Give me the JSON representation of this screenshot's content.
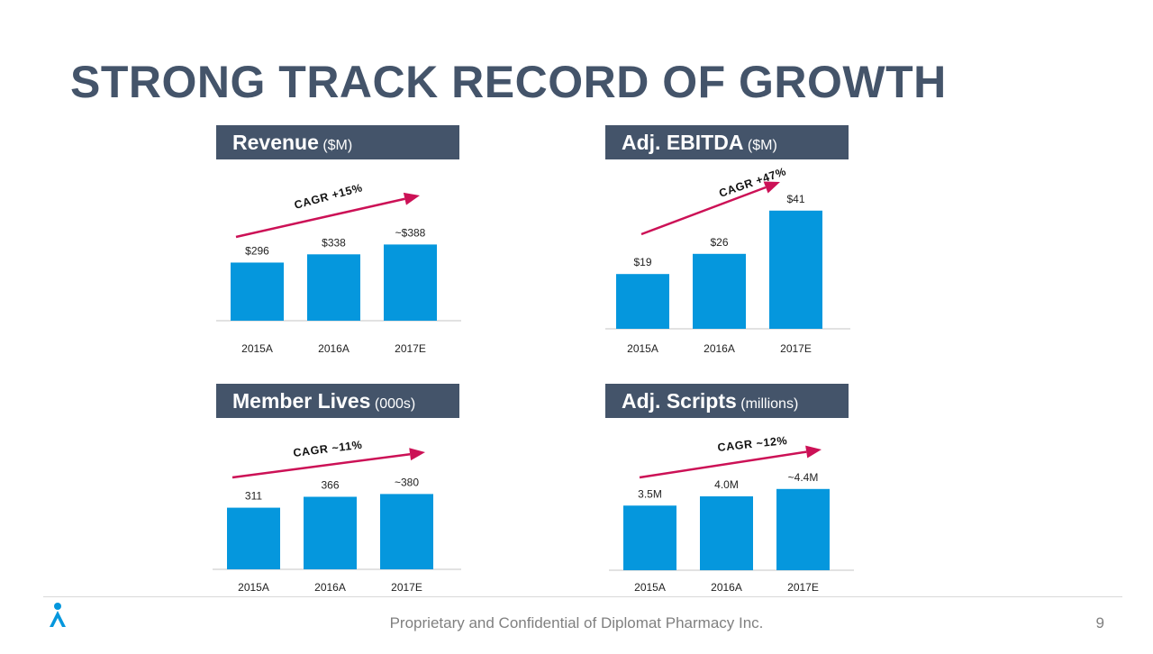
{
  "title": "STRONG TRACK RECORD OF GROWTH",
  "footer": "Proprietary and Confidential of Diplomat Pharmacy Inc.",
  "page_number": "9",
  "colors": {
    "bar": "#0597dd",
    "header": "#44546a",
    "arrow": "#cc1156",
    "title": "#44546a"
  },
  "chart_data": [
    {
      "type": "bar",
      "title": "Revenue",
      "unit": "($M)",
      "categories": [
        "2015A",
        "2016A",
        "2017E"
      ],
      "values": [
        296,
        338,
        388
      ],
      "labels": [
        "$296",
        "$338",
        "~$388"
      ],
      "ylim": [
        0,
        420
      ],
      "annotation": "CAGR +15%"
    },
    {
      "type": "bar",
      "title": "Adj. EBITDA",
      "unit": "($M)",
      "categories": [
        "2015A",
        "2016A",
        "2017E"
      ],
      "values": [
        19,
        26,
        41
      ],
      "labels": [
        "$19",
        "$26",
        "$41"
      ],
      "ylim": [
        0,
        47
      ],
      "annotation": "CAGR +47%"
    },
    {
      "type": "bar",
      "title": "Member Lives",
      "unit": "(000s)",
      "categories": [
        "2015A",
        "2016A",
        "2017E"
      ],
      "values": [
        311,
        366,
        380
      ],
      "labels": [
        "311",
        "366",
        "~380"
      ],
      "ylim": [
        0,
        420
      ],
      "annotation": "CAGR ~11%"
    },
    {
      "type": "bar",
      "title": "Adj. Scripts",
      "unit": "(millions)",
      "categories": [
        "2015A",
        "2016A",
        "2017E"
      ],
      "values": [
        3.5,
        4.0,
        4.4
      ],
      "labels": [
        "3.5M",
        "4.0M",
        "~4.4M"
      ],
      "ylim": [
        0,
        4.9
      ],
      "annotation": "CAGR ~12%"
    }
  ]
}
